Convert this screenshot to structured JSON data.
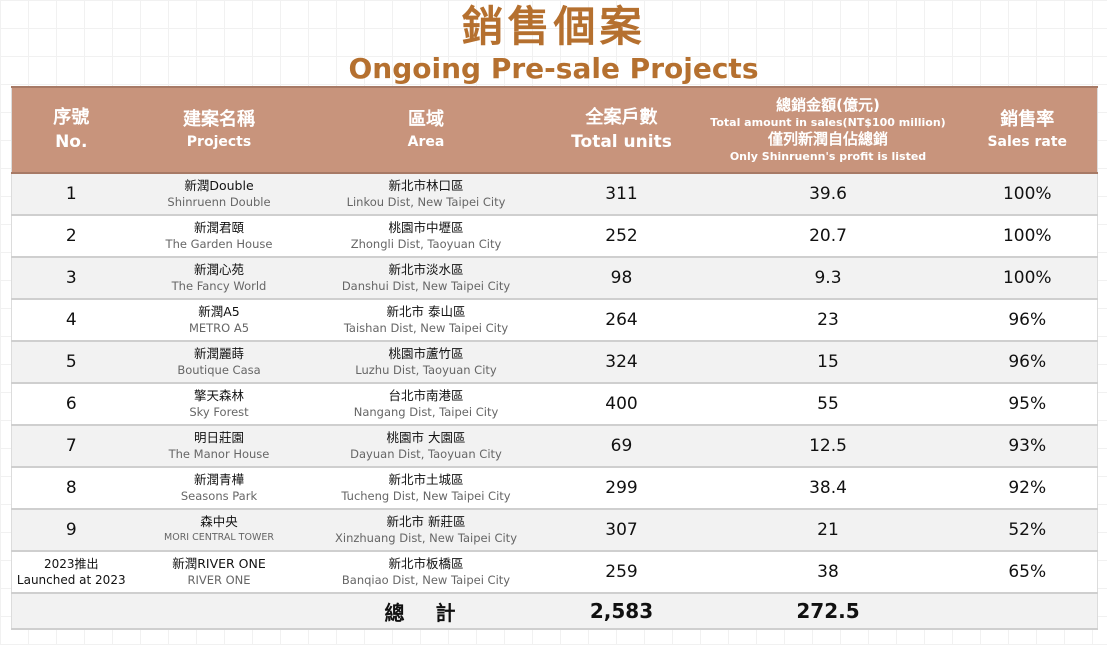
{
  "title": {
    "zh": "銷售個案",
    "en": "Ongoing Pre-sale Projects"
  },
  "headers": {
    "no": {
      "zh": "序號",
      "en": "No."
    },
    "projects": {
      "zh": "建案名稱",
      "en": "Projects"
    },
    "area": {
      "zh": "區域",
      "en": "Area"
    },
    "units": {
      "zh": "全案戶數",
      "en": "Total units"
    },
    "sales": {
      "zh": "總銷金額(億元)",
      "en": "Total amount in sales(NT$100 million)",
      "note_zh": "僅列新潤自佔總銷",
      "note_en": "Only Shinruenn's profit is listed"
    },
    "rate": {
      "zh": "銷售率",
      "en": "Sales rate"
    }
  },
  "rows": [
    {
      "no": "1",
      "name_zh": "新潤Double",
      "name_en": "Shinruenn Double",
      "area_zh": "新北市林口區",
      "area_en": "Linkou Dist, New Taipei City",
      "units": "311",
      "sales": "39.6",
      "rate": "100%"
    },
    {
      "no": "2",
      "name_zh": "新潤君頤",
      "name_en": "The Garden House",
      "area_zh": "桃園市中壢區",
      "area_en": "Zhongli Dist, Taoyuan City",
      "units": "252",
      "sales": "20.7",
      "rate": "100%"
    },
    {
      "no": "3",
      "name_zh": "新潤心苑",
      "name_en": "The Fancy World",
      "area_zh": "新北市淡水區",
      "area_en": "Danshui Dist, New Taipei City",
      "units": "98",
      "sales": "9.3",
      "rate": "100%"
    },
    {
      "no": "4",
      "name_zh": "新潤A5",
      "name_en": "METRO A5",
      "area_zh": "新北市 泰山區",
      "area_en": "Taishan Dist, New Taipei City",
      "units": "264",
      "sales": "23",
      "rate": "96%"
    },
    {
      "no": "5",
      "name_zh": "新潤麗蒔",
      "name_en": "Boutique Casa",
      "area_zh": "桃園市蘆竹區",
      "area_en": "Luzhu Dist, Taoyuan City",
      "units": "324",
      "sales": "15",
      "rate": "96%"
    },
    {
      "no": "6",
      "name_zh": "擎天森林",
      "name_en": "Sky Forest",
      "area_zh": "台北市南港區",
      "area_en": "Nangang Dist, Taipei City",
      "units": "400",
      "sales": "55",
      "rate": "95%"
    },
    {
      "no": "7",
      "name_zh": "明日莊園",
      "name_en": "The Manor House",
      "area_zh": "桃園市 大園區",
      "area_en": "Dayuan Dist, Taoyuan City",
      "units": "69",
      "sales": "12.5",
      "rate": "93%"
    },
    {
      "no": "8",
      "name_zh": "新潤青樺",
      "name_en": "Seasons Park",
      "area_zh": "新北市土城區",
      "area_en": "Tucheng Dist, New Taipei City",
      "units": "299",
      "sales": "38.4",
      "rate": "92%"
    },
    {
      "no": "9",
      "name_zh": "森中央",
      "name_en": "MORI CENTRAL TOWER",
      "area_zh": "新北市 新莊區",
      "area_en": "Xinzhuang Dist, New Taipei City",
      "units": "307",
      "sales": "21",
      "rate": "52%"
    },
    {
      "no_zh": "2023推出",
      "no_en": "Launched at 2023",
      "name_zh": "新潤RIVER ONE",
      "name_en": "RIVER ONE",
      "area_zh": "新北市板橋區",
      "area_en": "Banqiao Dist, New Taipei City",
      "units": "259",
      "sales": "38",
      "rate": "65%"
    }
  ],
  "total": {
    "label": "總 計",
    "units": "2,583",
    "sales": "272.5"
  }
}
